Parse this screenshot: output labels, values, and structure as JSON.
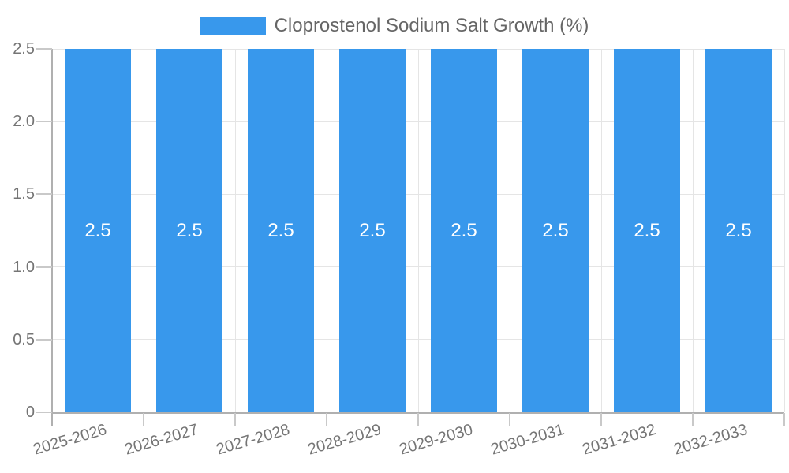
{
  "chart_data": {
    "type": "bar",
    "title": "",
    "legend": {
      "label": "Cloprostenol Sodium Salt Growth (%)",
      "position": "top-center"
    },
    "categories": [
      "2025-2026",
      "2026-2027",
      "2027-2028",
      "2028-2029",
      "2029-2030",
      "2030-2031",
      "2031-2032",
      "2032-2033"
    ],
    "series": [
      {
        "name": "Cloprostenol Sodium Salt Growth (%)",
        "values": [
          2.5,
          2.5,
          2.5,
          2.5,
          2.5,
          2.5,
          2.5,
          2.5
        ]
      }
    ],
    "data_labels": [
      "2.5",
      "2.5",
      "2.5",
      "2.5",
      "2.5",
      "2.5",
      "2.5",
      "2.5"
    ],
    "xlabel": "",
    "ylabel": "",
    "ylim": [
      0,
      2.5
    ],
    "yticks": {
      "values": [
        0,
        0.5,
        1.0,
        1.5,
        2.0,
        2.5
      ],
      "labels": [
        "0",
        "0.5",
        "1.0",
        "1.5",
        "2.0",
        "2.5"
      ]
    },
    "grid": "horizontal and vertical category boundaries",
    "colors": {
      "bar": "#3898ec",
      "grid": "#e5e5e5",
      "axis": "#b0b0b0",
      "tick": "#c9c9c9",
      "tick_text": "#757575",
      "legend_text": "#666666",
      "value_label": "#ffffff",
      "background": "#ffffff"
    }
  }
}
